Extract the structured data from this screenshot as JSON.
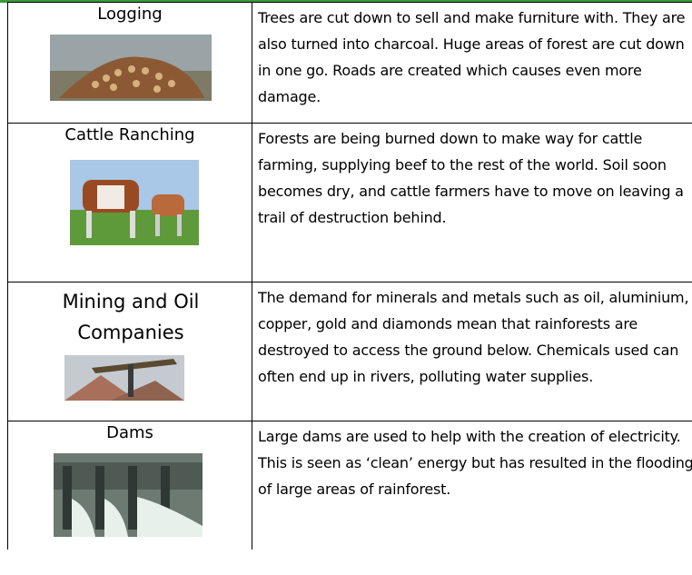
{
  "table": {
    "rows": [
      {
        "label": "Logging",
        "text": "Trees are cut down to sell and make furniture with. They are also turned into charcoal. Huge areas of forest are cut down in one go. Roads are created which causes even more damage."
      },
      {
        "label": "Cattle Ranching",
        "text": "Forests are being burned down to make way for cattle farming, supplying beef to the rest of the world. Soil soon becomes dry, and cattle farmers have to move on leaving a trail of destruction behind."
      },
      {
        "label": "Mining and Oil Companies",
        "text": "The demand for minerals and metals such as oil, aluminium, copper, gold and diamonds mean that rainforests are destroyed to access the ground below. Chemicals used can often end up in rivers, polluting water supplies."
      },
      {
        "label": "Dams",
        "text": "Large dams are used to help with the creation of electricity. This is seen as ‘clean’ energy but has resulted in the flooding of large areas of rainforest."
      }
    ]
  }
}
